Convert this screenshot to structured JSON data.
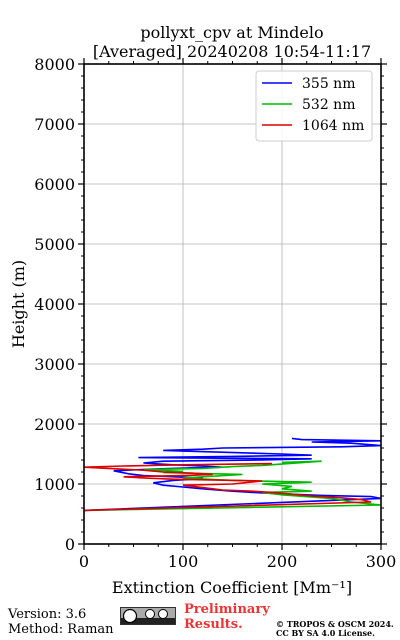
{
  "chart_data": {
    "type": "line",
    "title": "pollyxt_cpv at Mindelo",
    "subtitle": "[Averaged] 20240208 10:54-11:17",
    "xlabel": "Extinction Coefficient [Mm⁻¹]",
    "ylabel": "Height (m)",
    "xlim": [
      0,
      300
    ],
    "ylim": [
      0,
      8000
    ],
    "xticks": [
      "0",
      "100",
      "200",
      "300"
    ],
    "yticks": [
      "0",
      "1000",
      "2000",
      "3000",
      "4000",
      "5000",
      "6000",
      "7000",
      "8000"
    ],
    "grid": true,
    "legend_position": "top-right",
    "series": [
      {
        "name": "355 nm",
        "color": "#0000ff",
        "points": [
          [
            0,
            560
          ],
          [
            300,
            760
          ],
          [
            290,
            790
          ],
          [
            240,
            810
          ],
          [
            180,
            850
          ],
          [
            150,
            880
          ],
          [
            120,
            920
          ],
          [
            100,
            950
          ],
          [
            80,
            980
          ],
          [
            70,
            1020
          ],
          [
            90,
            1060
          ],
          [
            110,
            1080
          ],
          [
            120,
            1100
          ],
          [
            60,
            1140
          ],
          [
            45,
            1170
          ],
          [
            30,
            1220
          ],
          [
            70,
            1250
          ],
          [
            110,
            1270
          ],
          [
            140,
            1280
          ],
          [
            120,
            1300
          ],
          [
            90,
            1320
          ],
          [
            60,
            1350
          ],
          [
            80,
            1380
          ],
          [
            180,
            1400
          ],
          [
            230,
            1420
          ],
          [
            55,
            1440
          ],
          [
            150,
            1460
          ],
          [
            230,
            1480
          ],
          [
            200,
            1500
          ],
          [
            80,
            1560
          ],
          [
            120,
            1580
          ],
          [
            140,
            1600
          ],
          [
            260,
            1620
          ],
          [
            300,
            1640
          ],
          [
            270,
            1680
          ],
          [
            230,
            1700
          ],
          [
            300,
            1720
          ],
          [
            220,
            1740
          ],
          [
            210,
            1760
          ]
        ]
      },
      {
        "name": "532 nm",
        "color": "#00bb00",
        "points": [
          [
            0,
            560
          ],
          [
            300,
            650
          ],
          [
            270,
            700
          ],
          [
            250,
            760
          ],
          [
            200,
            820
          ],
          [
            180,
            860
          ],
          [
            230,
            880
          ],
          [
            200,
            920
          ],
          [
            210,
            960
          ],
          [
            180,
            1000
          ],
          [
            230,
            1030
          ],
          [
            150,
            1060
          ],
          [
            100,
            1100
          ],
          [
            160,
            1160
          ],
          [
            80,
            1190
          ],
          [
            100,
            1210
          ],
          [
            60,
            1240
          ],
          [
            120,
            1260
          ],
          [
            150,
            1290
          ],
          [
            180,
            1310
          ],
          [
            240,
            1380
          ],
          [
            200,
            1360
          ]
        ]
      },
      {
        "name": "1064 nm",
        "color": "#dd0000",
        "points": [
          [
            0,
            560
          ],
          [
            290,
            700
          ],
          [
            280,
            740
          ],
          [
            260,
            770
          ],
          [
            230,
            800
          ],
          [
            210,
            830
          ],
          [
            190,
            860
          ],
          [
            170,
            880
          ],
          [
            140,
            900
          ],
          [
            120,
            940
          ],
          [
            100,
            980
          ],
          [
            150,
            1000
          ],
          [
            180,
            1050
          ],
          [
            90,
            1080
          ],
          [
            60,
            1100
          ],
          [
            40,
            1120
          ],
          [
            100,
            1140
          ],
          [
            130,
            1160
          ],
          [
            110,
            1180
          ],
          [
            80,
            1200
          ],
          [
            60,
            1230
          ],
          [
            0,
            1280
          ],
          [
            40,
            1300
          ],
          [
            100,
            1320
          ],
          [
            190,
            1340
          ]
        ]
      }
    ]
  },
  "footer": {
    "version": "Version: 3.6",
    "method": "Method: Raman",
    "preliminary_line1": "Preliminary",
    "preliminary_line2": "Results.",
    "copyright_line1": "© TROPOS & OSCM 2024.",
    "copyright_line2": "CC BY SA 4.0 License."
  }
}
